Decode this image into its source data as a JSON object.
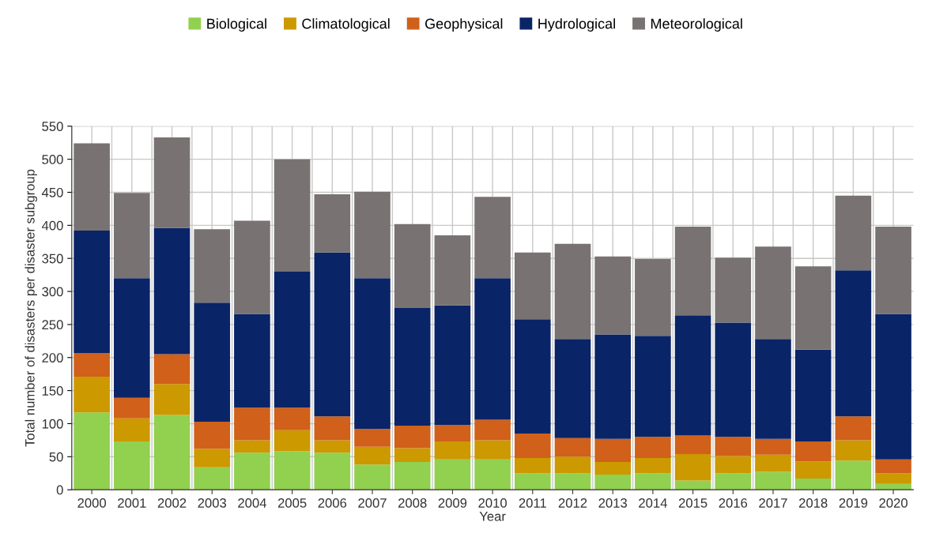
{
  "chart_data": {
    "type": "bar",
    "stacked": true,
    "xlabel": "Year",
    "ylabel": "Total number of disasters per disaster subgroup",
    "categories": [
      "2000",
      "2001",
      "2002",
      "2003",
      "2004",
      "2005",
      "2006",
      "2007",
      "2008",
      "2009",
      "2010",
      "2011",
      "2012",
      "2013",
      "2014",
      "2015",
      "2016",
      "2017",
      "2018",
      "2019",
      "2020"
    ],
    "series": [
      {
        "name": "Biological",
        "color": "#92d050",
        "values": [
          117,
          73,
          113,
          34,
          56,
          58,
          56,
          38,
          42,
          46,
          46,
          25,
          25,
          23,
          25,
          14,
          25,
          27,
          17,
          44,
          9
        ]
      },
      {
        "name": "Climatological",
        "color": "#cc9900",
        "values": [
          54,
          35,
          47,
          28,
          19,
          32,
          19,
          27,
          21,
          27,
          29,
          23,
          25,
          19,
          23,
          40,
          26,
          26,
          26,
          31,
          16
        ]
      },
      {
        "name": "Geophysical",
        "color": "#d0601a",
        "values": [
          36,
          31,
          45,
          41,
          49,
          34,
          36,
          27,
          34,
          25,
          31,
          37,
          28,
          35,
          32,
          28,
          29,
          24,
          30,
          36,
          21
        ]
      },
      {
        "name": "Hydrological",
        "color": "#0a2468",
        "values": [
          185,
          181,
          191,
          180,
          142,
          206,
          248,
          228,
          178,
          181,
          214,
          173,
          150,
          158,
          153,
          182,
          173,
          151,
          139,
          221,
          220
        ]
      },
      {
        "name": "Meteorological",
        "color": "#787372",
        "values": [
          132,
          129,
          137,
          111,
          141,
          170,
          88,
          131,
          127,
          106,
          123,
          101,
          144,
          118,
          116,
          134,
          98,
          140,
          126,
          113,
          132
        ]
      }
    ],
    "ylim": [
      0,
      550
    ],
    "yticks": [
      0,
      50,
      100,
      150,
      200,
      250,
      300,
      350,
      400,
      450,
      500,
      550
    ],
    "grid": true,
    "legend": "top"
  }
}
